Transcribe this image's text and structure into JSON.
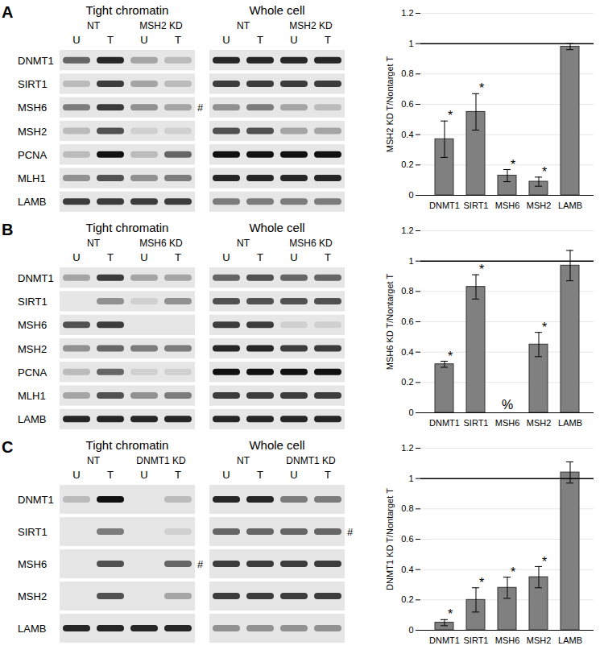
{
  "chart_data": [
    {
      "type": "bar",
      "panel": "A",
      "y_label": "MSH2 KD T/Nontarget T",
      "categories": [
        "DNMT1",
        "SIRT1",
        "MSH6",
        "MSH2",
        "LAMB"
      ],
      "values": [
        0.37,
        0.55,
        0.13,
        0.09,
        0.98
      ],
      "errors": [
        0.12,
        0.12,
        0.04,
        0.03,
        0.02
      ],
      "annotations": [
        "*",
        "*",
        "*",
        "*",
        null
      ],
      "reference_line": 1,
      "color": "#808080",
      "ylim": [
        0,
        1.2
      ],
      "yticks": [
        0,
        0.2,
        0.4,
        0.6,
        0.8,
        1,
        1.2
      ],
      "grid": true
    },
    {
      "type": "bar",
      "panel": "B",
      "y_label": "MSH6 KD T/Nontarget T",
      "categories": [
        "DNMT1",
        "SIRT1",
        "MSH6",
        "MSH2",
        "LAMB"
      ],
      "values": [
        0.32,
        0.83,
        null,
        0.45,
        0.97
      ],
      "errors": [
        0.02,
        0.08,
        null,
        0.08,
        0.1
      ],
      "annotations": [
        "*",
        "*",
        "%",
        "*",
        null
      ],
      "reference_line": 1,
      "color": "#808080",
      "ylim": [
        0,
        1.2
      ],
      "yticks": [
        0,
        0.2,
        0.4,
        0.6,
        0.8,
        1,
        1.2
      ],
      "grid": true
    },
    {
      "type": "bar",
      "panel": "C",
      "y_label": "DNMT1 KD T/Nontarget T",
      "categories": [
        "DNMT1",
        "SIRT1",
        "MSH6",
        "MSH2",
        "LAMB"
      ],
      "values": [
        0.05,
        0.2,
        0.28,
        0.35,
        1.04
      ],
      "errors": [
        0.02,
        0.08,
        0.07,
        0.07,
        0.07
      ],
      "annotations": [
        "*",
        "*",
        "*",
        "*",
        null
      ],
      "reference_line": 1,
      "color": "#808080",
      "ylim": [
        0,
        1.2
      ],
      "yticks": [
        0,
        0.2,
        0.4,
        0.6,
        0.8,
        1,
        1.2
      ],
      "grid": true
    }
  ],
  "blots": [
    {
      "panel": "A",
      "rows": [
        "DNMT1",
        "SIRT1",
        "MSH6",
        "MSH2",
        "PCNA",
        "MLH1",
        "LAMB"
      ],
      "groups": [
        {
          "title": "Tight chromatin",
          "conditions": [
            "NT",
            "MSH2 KD"
          ],
          "lanes": [
            "U",
            "T",
            "U",
            "T"
          ],
          "intensity": [
            [
              0.6,
              0.9,
              0.3,
              0.2
            ],
            [
              0.2,
              0.8,
              0.3,
              0.2
            ],
            [
              0.5,
              0.8,
              0.4,
              0.3
            ],
            [
              0.2,
              0.7,
              0.1,
              0.1
            ],
            [
              0.2,
              1,
              0.2,
              0.6
            ],
            [
              0.4,
              0.7,
              0.4,
              0.5
            ],
            [
              0.8,
              0.8,
              0.8,
              0.8
            ]
          ]
        },
        {
          "title": "Whole cell",
          "conditions": [
            "NT",
            "MSH2 KD"
          ],
          "lanes": [
            "U",
            "T",
            "U",
            "T"
          ],
          "intensity": [
            [
              0.9,
              0.9,
              0.9,
              0.9
            ],
            [
              0.8,
              0.8,
              0.8,
              0.8
            ],
            [
              0.4,
              0.5,
              0.3,
              0.2
            ],
            [
              0.7,
              0.7,
              0.3,
              0.3
            ],
            [
              1,
              1,
              1,
              1
            ],
            [
              0.9,
              0.9,
              0.9,
              0.9
            ],
            [
              0.5,
              0.5,
              0.5,
              0.5
            ]
          ]
        }
      ],
      "marks": [
        {
          "group": "Tight chromatin",
          "row": "MSH6",
          "text": "#"
        }
      ]
    },
    {
      "panel": "B",
      "rows": [
        "DNMT1",
        "SIRT1",
        "MSH6",
        "MSH2",
        "PCNA",
        "MLH1",
        "LAMB"
      ],
      "groups": [
        {
          "title": "Tight chromatin",
          "conditions": [
            "NT",
            "MSH6 KD"
          ],
          "lanes": [
            "U",
            "T",
            "U",
            "T"
          ],
          "intensity": [
            [
              0.3,
              0.8,
              0.3,
              0.3
            ],
            [
              0,
              0.4,
              0.1,
              0.4
            ],
            [
              0.7,
              0.8,
              0,
              0
            ],
            [
              0.4,
              0.6,
              0.5,
              0.5
            ],
            [
              0.2,
              0.6,
              0.1,
              0.1
            ],
            [
              0.3,
              0.7,
              0.4,
              0.5
            ],
            [
              0.9,
              0.9,
              0.9,
              0.9
            ]
          ]
        },
        {
          "title": "Whole cell",
          "conditions": [
            "NT",
            "MSH6 KD"
          ],
          "lanes": [
            "U",
            "T",
            "U",
            "T"
          ],
          "intensity": [
            [
              0.6,
              0.7,
              0.6,
              0.6
            ],
            [
              0.7,
              0.7,
              0.7,
              0.7
            ],
            [
              0.8,
              0.8,
              0.1,
              0.1
            ],
            [
              0.9,
              0.9,
              0.8,
              0.8
            ],
            [
              1,
              1,
              1,
              1
            ],
            [
              0.8,
              0.8,
              0.8,
              0.8
            ],
            [
              0.9,
              0.9,
              0.9,
              0.9
            ]
          ]
        }
      ],
      "marks": []
    },
    {
      "panel": "C",
      "rows": [
        "DNMT1",
        "SIRT1",
        "MSH6",
        "MSH2",
        "LAMB"
      ],
      "groups": [
        {
          "title": "Tight chromatin",
          "conditions": [
            "NT",
            "DNMT1 KD"
          ],
          "lanes": [
            "U",
            "T",
            "U",
            "T"
          ],
          "intensity": [
            [
              0.2,
              1,
              0,
              0.2
            ],
            [
              0,
              0.5,
              0,
              0.1
            ],
            [
              0,
              0.7,
              0,
              0.6
            ],
            [
              0,
              0.7,
              0,
              0.3
            ],
            [
              0.9,
              0.9,
              0.9,
              0.9
            ]
          ]
        },
        {
          "title": "Whole cell",
          "conditions": [
            "NT",
            "DNMT1 KD"
          ],
          "lanes": [
            "U",
            "T",
            "U",
            "T"
          ],
          "intensity": [
            [
              0.9,
              0.9,
              0.5,
              0.5
            ],
            [
              0.6,
              0.6,
              0.6,
              0.6
            ],
            [
              0.8,
              0.8,
              0.8,
              0.8
            ],
            [
              0.8,
              0.8,
              0.8,
              0.8
            ],
            [
              0.4,
              0.4,
              0.4,
              0.4
            ]
          ]
        }
      ],
      "marks": [
        {
          "group": "Tight chromatin",
          "row": "MSH6",
          "text": "#"
        },
        {
          "group": "Whole cell",
          "row": "SIRT1",
          "text": "#"
        }
      ]
    }
  ]
}
